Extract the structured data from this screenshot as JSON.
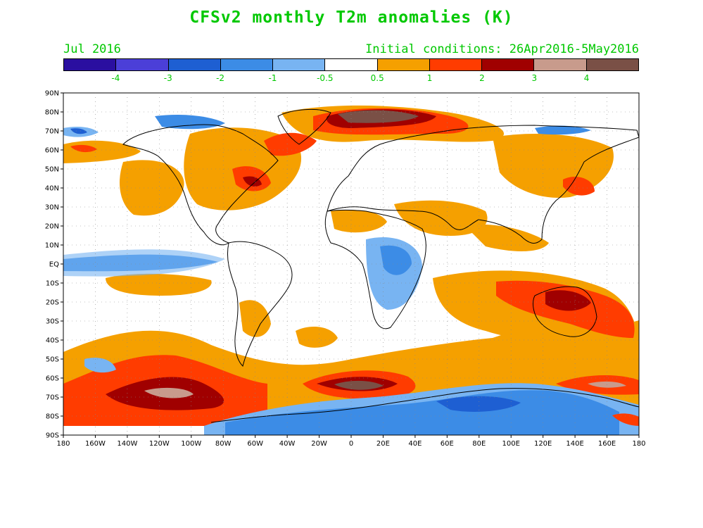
{
  "title": "CFSv2 monthly T2m anomalies (K)",
  "subtitle_left": "Jul 2016",
  "subtitle_right": "Initial conditions: 26Apr2016-5May2016",
  "colorbar": {
    "colors": [
      "#2a0fa0",
      "#4b3fd8",
      "#1e5fd2",
      "#3c8ce6",
      "#78b4f2",
      "#ffffff",
      "#f5a000",
      "#ff3c00",
      "#a00000",
      "#c89b8c",
      "#7a5046"
    ],
    "labels": [
      "-4",
      "-3",
      "-2",
      "-1",
      "-0.5",
      "0.5",
      "1",
      "2",
      "3",
      "4"
    ]
  },
  "lat_labels": [
    "90N",
    "80N",
    "70N",
    "60N",
    "50N",
    "40N",
    "30N",
    "20N",
    "10N",
    "EQ",
    "10S",
    "20S",
    "30S",
    "40S",
    "50S",
    "60S",
    "70S",
    "80S",
    "90S"
  ],
  "lon_labels": [
    "180",
    "160W",
    "140W",
    "120W",
    "100W",
    "80W",
    "60W",
    "40W",
    "20W",
    "0",
    "20E",
    "40E",
    "60E",
    "80E",
    "100E",
    "120E",
    "140E",
    "160E",
    "180"
  ]
}
